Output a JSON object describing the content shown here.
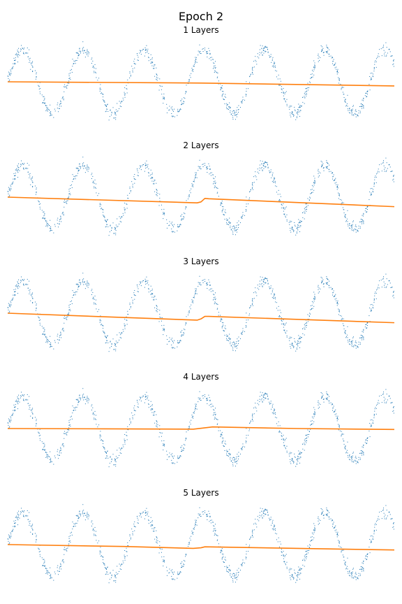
{
  "figure": {
    "suptitle": "Epoch 2"
  },
  "colors": {
    "data": "#1f77b4",
    "model": "#ff7f0e"
  },
  "chart_data": [
    {
      "type": "scatter",
      "title": "1 Layers",
      "axes_visible": false,
      "xlim": [
        0,
        1
      ],
      "ylim": [
        -1.3,
        1.3
      ],
      "scatter_series": {
        "function": "sin",
        "cycles": 6.4,
        "amplitude": 1.0,
        "noise": 0.1,
        "points": 1000
      },
      "line_series": {
        "x": [
          0,
          0.5,
          1.0
        ],
        "y": [
          0.0,
          -0.04,
          -0.13
        ]
      }
    },
    {
      "type": "scatter",
      "title": "2 Layers",
      "axes_visible": false,
      "xlim": [
        0,
        1
      ],
      "ylim": [
        -1.3,
        1.3
      ],
      "scatter_series": {
        "function": "sin",
        "cycles": 6.4,
        "amplitude": 1.0,
        "noise": 0.1,
        "points": 1000
      },
      "line_series": {
        "x": [
          0,
          0.49,
          0.5,
          0.51,
          0.52,
          1.0
        ],
        "y": [
          0.0,
          -0.18,
          -0.15,
          -0.04,
          -0.05,
          -0.3
        ]
      }
    },
    {
      "type": "scatter",
      "title": "3 Layers",
      "axes_visible": false,
      "xlim": [
        0,
        1
      ],
      "ylim": [
        -1.3,
        1.3
      ],
      "scatter_series": {
        "function": "sin",
        "cycles": 6.4,
        "amplitude": 1.0,
        "noise": 0.1,
        "points": 1000
      },
      "line_series": {
        "x": [
          0,
          0.49,
          0.5,
          0.51,
          0.52,
          1.0
        ],
        "y": [
          0.0,
          -0.22,
          -0.18,
          -0.1,
          -0.1,
          -0.3
        ]
      }
    },
    {
      "type": "scatter",
      "title": "4 Layers",
      "axes_visible": false,
      "xlim": [
        0,
        1
      ],
      "ylim": [
        -1.3,
        1.3
      ],
      "scatter_series": {
        "function": "sin",
        "cycles": 6.4,
        "amplitude": 1.0,
        "noise": 0.1,
        "points": 1000
      },
      "line_series": {
        "x": [
          0,
          0.25,
          0.48,
          0.53,
          0.75,
          1.0
        ],
        "y": [
          0.0,
          -0.01,
          -0.02,
          0.05,
          0.0,
          -0.03
        ]
      }
    },
    {
      "type": "scatter",
      "title": "5 Layers",
      "axes_visible": false,
      "xlim": [
        0,
        1
      ],
      "ylim": [
        -1.3,
        1.3
      ],
      "scatter_series": {
        "function": "sin",
        "cycles": 6.4,
        "amplitude": 1.0,
        "noise": 0.1,
        "points": 1000
      },
      "line_series": {
        "x": [
          0,
          0.3,
          0.48,
          0.5,
          0.51,
          1.0
        ],
        "y": [
          0.0,
          -0.06,
          -0.12,
          -0.1,
          -0.07,
          -0.17
        ]
      }
    }
  ]
}
